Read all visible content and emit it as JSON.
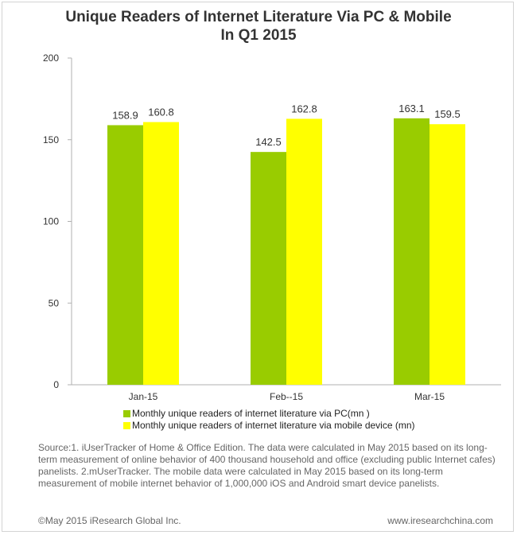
{
  "chart_data": {
    "type": "bar",
    "title_line1": "Unique Readers of Internet Literature Via PC & Mobile",
    "title_line2": "In Q1 2015",
    "categories": [
      "Jan-15",
      "Feb--15",
      "Mar-15"
    ],
    "series": [
      {
        "name": "Monthly unique readers of internet literature via PC(mn )",
        "color": "#99cc00",
        "values": [
          158.9,
          142.5,
          163.1
        ]
      },
      {
        "name": "Monthly unique readers of internet literature via mobile device  (mn)",
        "color": "#ffff00",
        "values": [
          160.8,
          162.8,
          159.5
        ]
      }
    ],
    "data_labels": [
      [
        "158.9",
        "142.5",
        "163.1"
      ],
      [
        "160.8",
        "162.8",
        "159.5"
      ]
    ],
    "ylim": [
      0,
      200
    ],
    "yticks": [
      0,
      50,
      100,
      150,
      200
    ],
    "ytick_labels": [
      "0",
      "50",
      "100",
      "150",
      "200"
    ],
    "grid": false,
    "legend_position": "bottom",
    "xlabel": "",
    "ylabel": ""
  },
  "source_text": "Source:1. iUserTracker of Home & Office Edition. The data were calculated in May 2015 based on its long-term measurement of online behavior of 400 thousand household and office (excluding public Internet cafes) panelists. 2.mUserTracker. The mobile data were calculated in May 2015  based on its long-term measurement of mobile internet behavior of 1,000,000  iOS and Android smart device panelists.",
  "footer": {
    "copyright": "©May 2015 iResearch Global Inc.",
    "website": "www.iresearchchina.com"
  }
}
